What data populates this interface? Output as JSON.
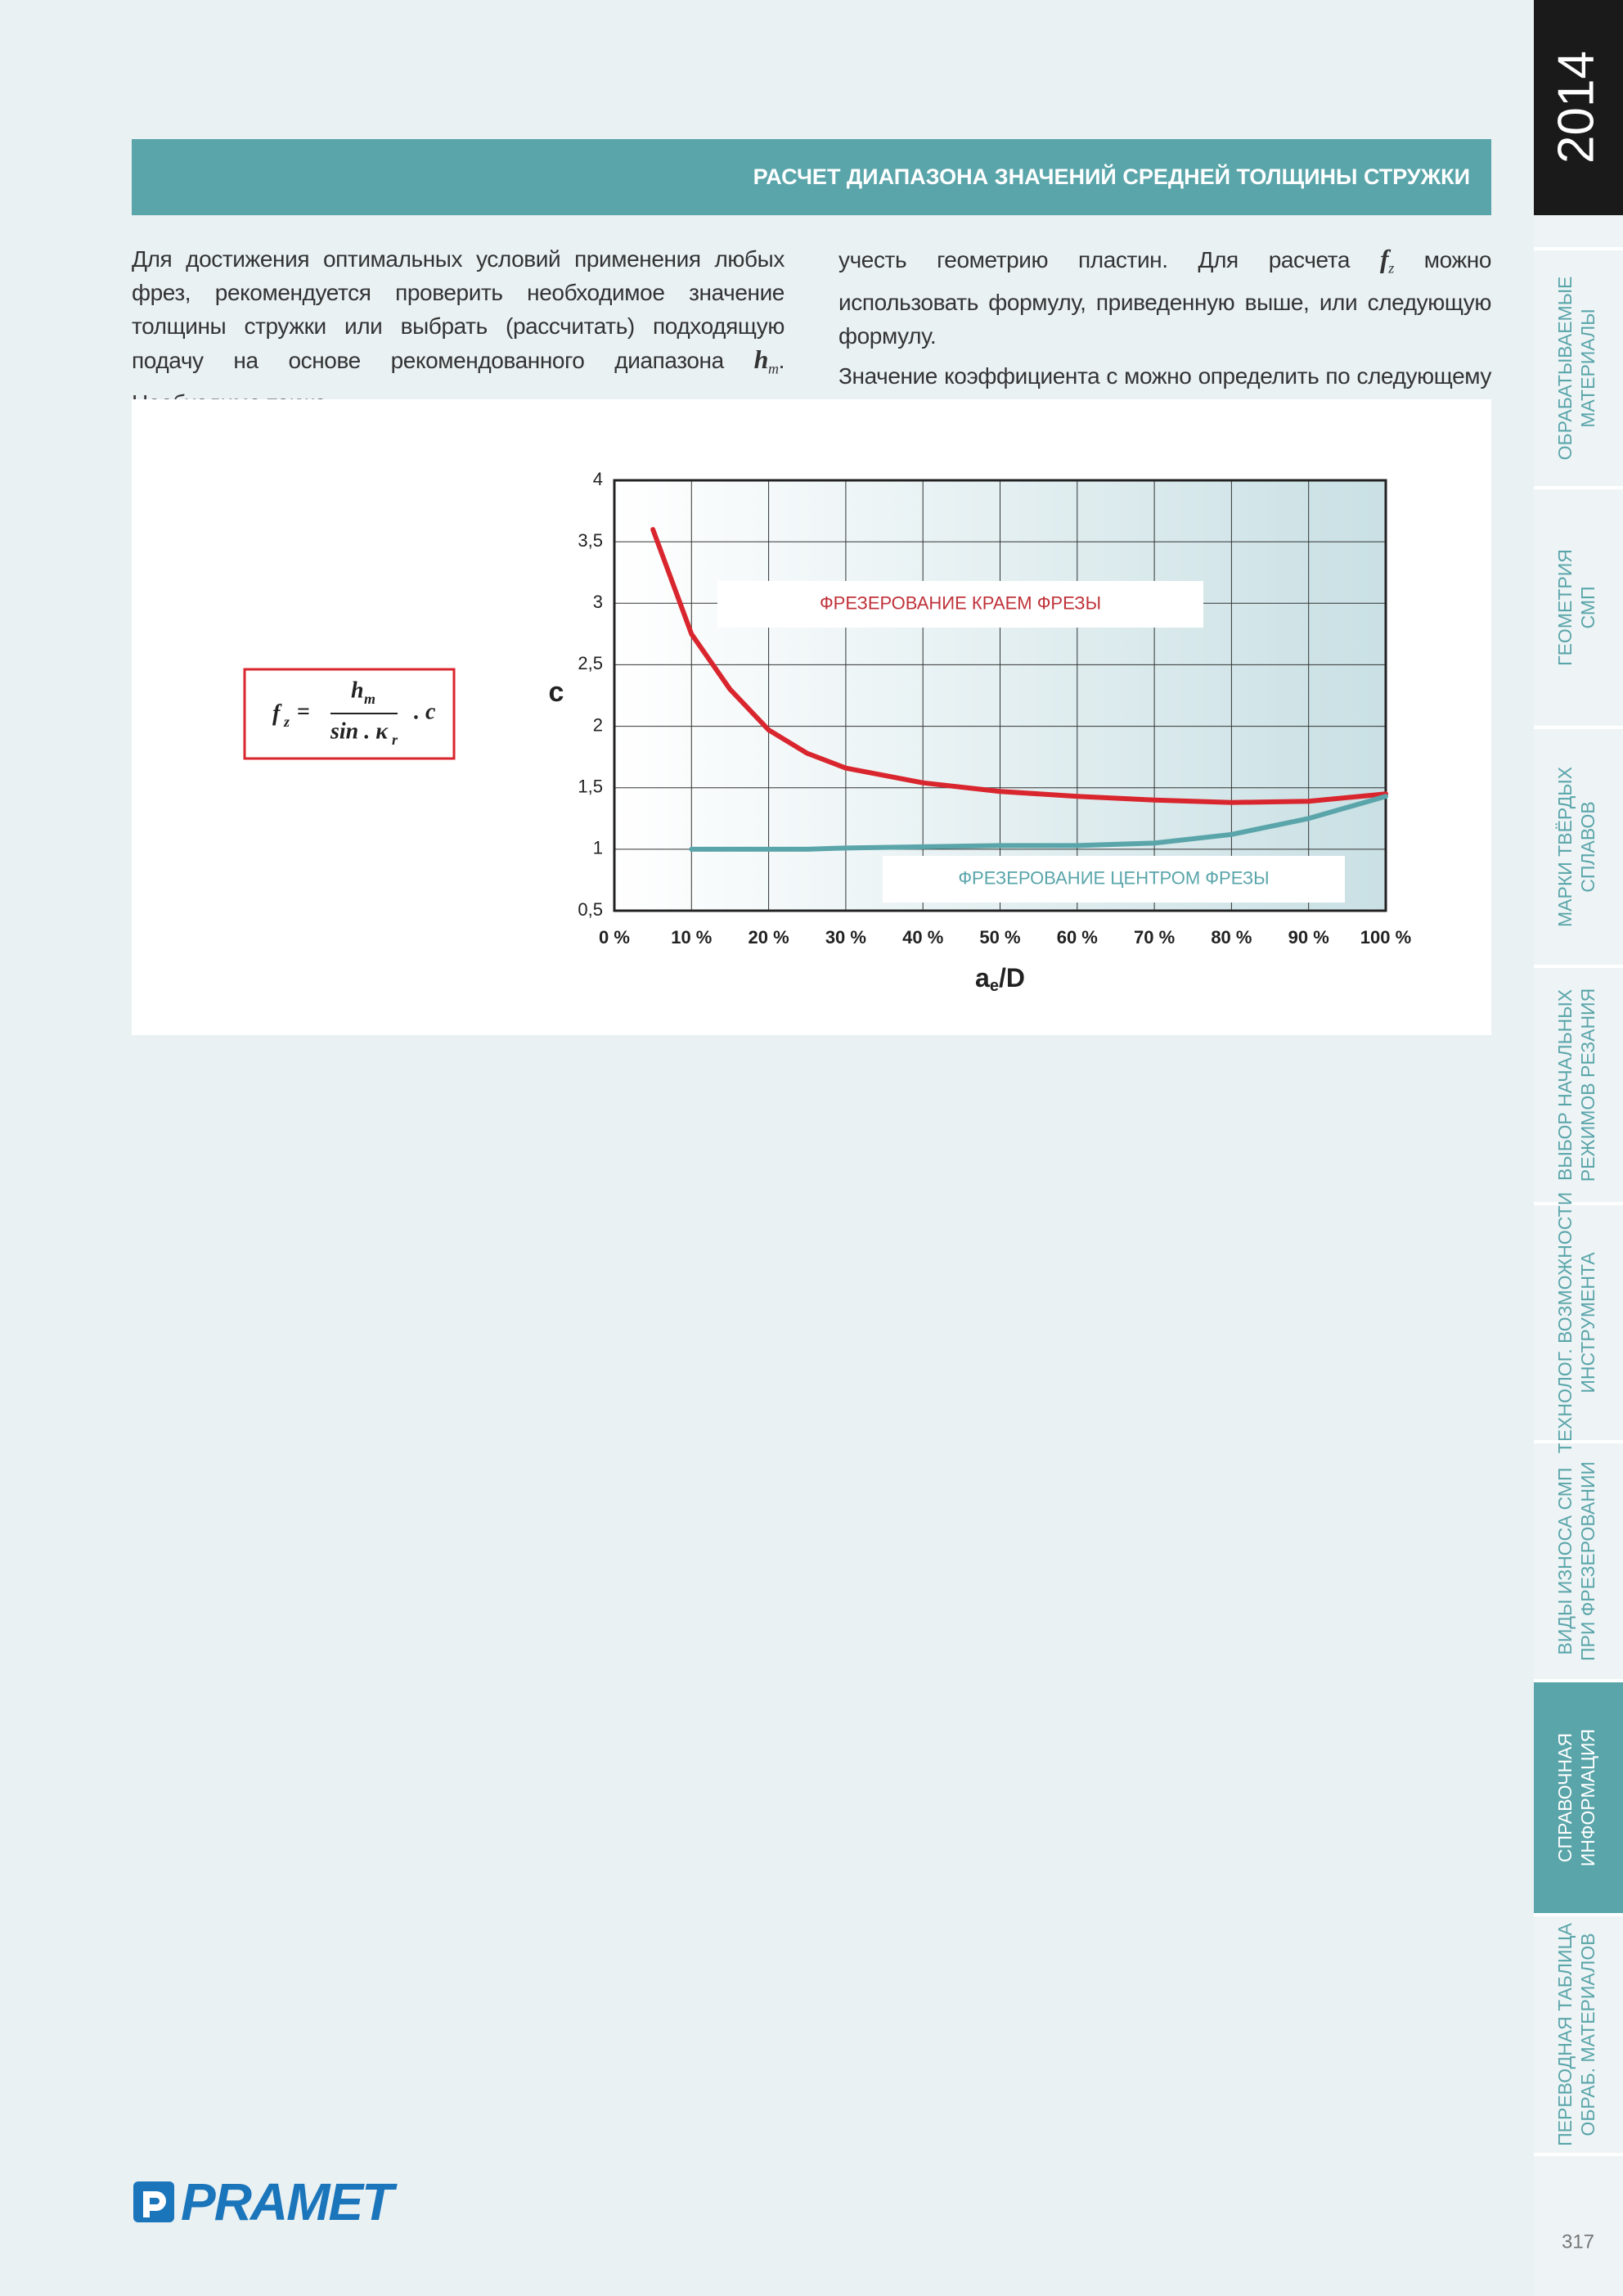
{
  "sidebar": {
    "year": "2014",
    "page_number": "317",
    "tabs": [
      {
        "lines": [
          "ОБРАБАТЫВАЕМЫЕ",
          "МАТЕРИАЛЫ"
        ],
        "active": false
      },
      {
        "lines": [
          "ГЕОМЕТРИЯ",
          "СМП"
        ],
        "active": false
      },
      {
        "lines": [
          "МАРКИ ТВЁРДЫХ",
          "СПЛАВОВ"
        ],
        "active": false
      },
      {
        "lines": [
          "ВЫБОР НАЧАЛЬНЫХ",
          "РЕЖИМОВ РЕЗАНИЯ"
        ],
        "active": false
      },
      {
        "lines": [
          "ТЕХНОЛОГ. ВОЗМОЖНОСТИ",
          "ИНСТРУМЕНТА"
        ],
        "active": false
      },
      {
        "lines": [
          "ВИДЫ ИЗНОСА СМП",
          "ПРИ ФРЕЗЕРОВАНИИ"
        ],
        "active": false
      },
      {
        "lines": [
          "СПРАВОЧНАЯ",
          "ИНФОРМАЦИЯ"
        ],
        "active": true
      },
      {
        "lines": [
          "ПЕРЕВОДНАЯ ТАБЛИЦА",
          "ОБРАБ. МАТЕРИАЛОВ"
        ],
        "active": false
      }
    ]
  },
  "header": {
    "title": "РАСЧЕТ ДИАПАЗОНА ЗНАЧЕНИЙ СРЕДНЕЙ ТОЛЩИНЫ СТРУЖКИ"
  },
  "text": {
    "left": [
      "Для достижения оптимальных условий применения любых фрез, рекомендуется проверить необходимое значение толщины стружки или выбрать (рассчитать) подходящую подачу на основе рекомендованного диапазона ",
      "h",
      "m",
      ". Необходимо также"
    ],
    "right_1": [
      "учесть геометрию пластин. Для расчета ",
      "f",
      "z",
      " можно использовать формулу, приведенную выше, или следующую формулу."
    ],
    "right_2": "Значение коэффициента с можно определить по следующему графику:"
  },
  "formula": {
    "lhs": "f",
    "lhs_sub": "z",
    "equals": "=",
    "numerator": "h",
    "numerator_sub": "m",
    "denominator": "sin . κ",
    "denominator_sub": "r",
    "factor": ". c"
  },
  "chart_data": {
    "type": "line",
    "x": [
      5,
      10,
      15,
      20,
      25,
      30,
      40,
      50,
      60,
      70,
      80,
      90,
      100
    ],
    "series": [
      {
        "color": "#d9262e",
        "values": [
          3.6,
          2.75,
          2.3,
          1.97,
          1.78,
          1.66,
          1.54,
          1.47,
          1.43,
          1.4,
          1.38,
          1.39,
          1.45
        ]
      },
      {
        "color": "#5aa5aa",
        "values": [
          null,
          1.0,
          1.0,
          1.0,
          1.0,
          1.01,
          1.02,
          1.03,
          1.03,
          1.05,
          1.12,
          1.25,
          1.43
        ]
      }
    ],
    "xlim": [
      0,
      100
    ],
    "ylim": [
      0.5,
      4
    ],
    "xticks": [
      {
        "value": 0,
        "label": "0 %"
      },
      {
        "value": 10,
        "label": "10 %"
      },
      {
        "value": 20,
        "label": "20 %"
      },
      {
        "value": 30,
        "label": "30 %"
      },
      {
        "value": 40,
        "label": "40 %"
      },
      {
        "value": 50,
        "label": "50 %"
      },
      {
        "value": 60,
        "label": "60 %"
      },
      {
        "value": 70,
        "label": "70 %"
      },
      {
        "value": 80,
        "label": "80 %"
      },
      {
        "value": 90,
        "label": "90 %"
      },
      {
        "value": 100,
        "label": "100 %"
      }
    ],
    "yticks": [
      {
        "value": 0.5,
        "label": "0,5"
      },
      1,
      {
        "value": 1.5,
        "label": "1,5"
      },
      2,
      {
        "value": 2.5,
        "label": "2,5"
      },
      3,
      {
        "value": 3.5,
        "label": "3,5"
      },
      4
    ],
    "xlabel": {
      "main": "a",
      "sub": "e",
      "rest": "/D"
    },
    "ylabel": "c",
    "grid": true,
    "annotations": [
      {
        "text": "ФРЕЗЕРОВАНИЕ КРАЕМ ФРЕЗЫ",
        "color": "#c0323a"
      },
      {
        "text": "ФРЕЗЕРОВАНИЕ ЦЕНТРОМ ФРЕЗЫ",
        "color": "#5aa5aa"
      }
    ]
  },
  "logo": "PRAMET"
}
